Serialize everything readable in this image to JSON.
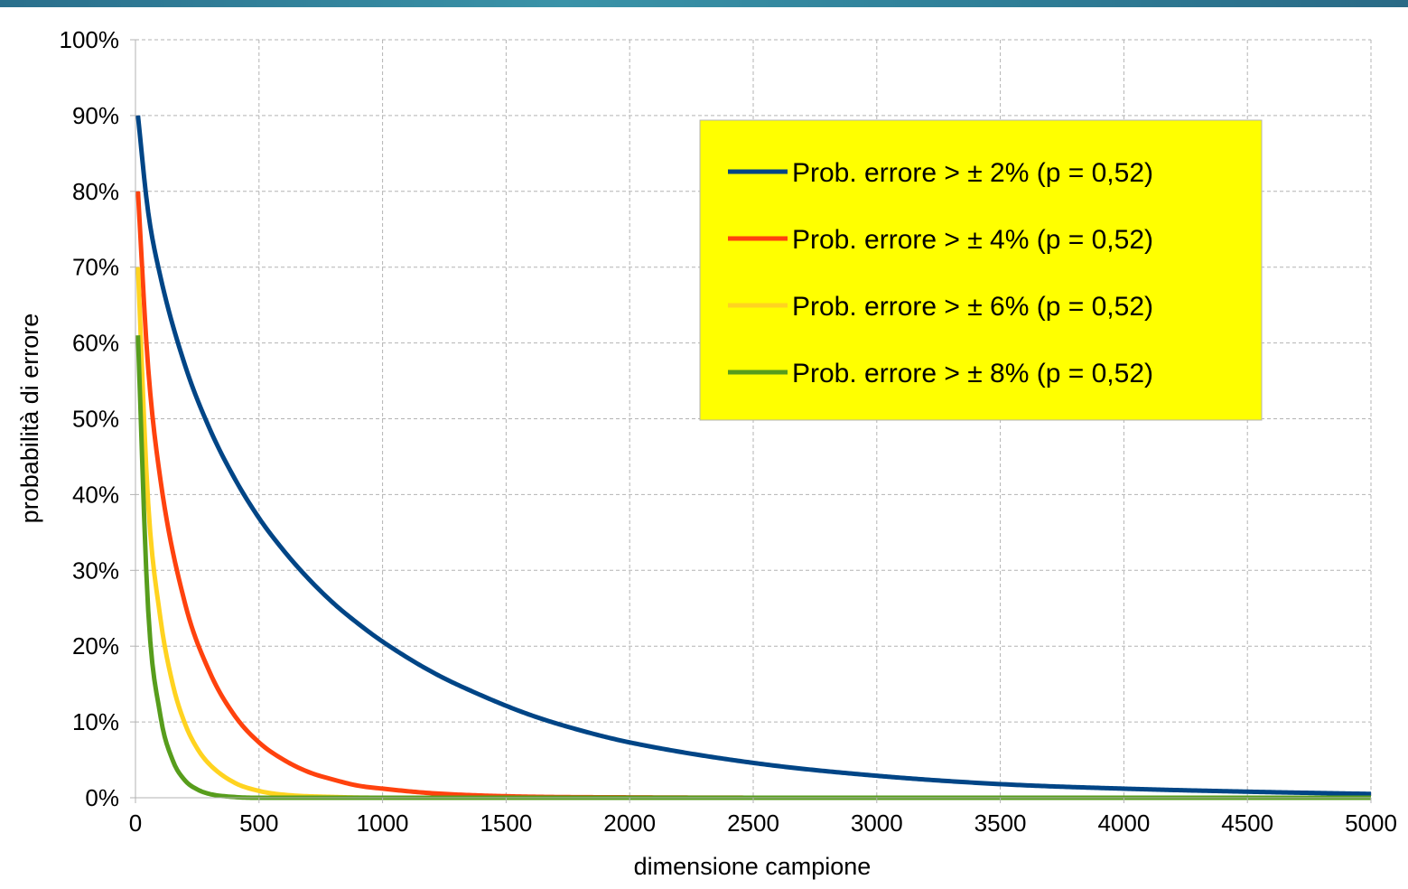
{
  "chart_data": {
    "type": "line",
    "xlabel": "dimensione campione",
    "ylabel": "probabilità di errore",
    "xlim": [
      0,
      5000
    ],
    "ylim": [
      0,
      100
    ],
    "x_ticks": [
      "0",
      "500",
      "1000",
      "1500",
      "2000",
      "2500",
      "3000",
      "3500",
      "4000",
      "4500",
      "5000"
    ],
    "y_ticks": [
      "0%",
      "10%",
      "20%",
      "30%",
      "40%",
      "50%",
      "60%",
      "70%",
      "80%",
      "90%",
      "100%"
    ],
    "grid": true,
    "legend_position": "top-right",
    "legend_background": "#ffff00",
    "series": [
      {
        "name": "Prob. errore > ± 2% (p = 0,52)",
        "color": "#004586",
        "points": [
          [
            10,
            90
          ],
          [
            50,
            77.6
          ],
          [
            100,
            68.9
          ],
          [
            200,
            57.1
          ],
          [
            300,
            48.7
          ],
          [
            400,
            42.2
          ],
          [
            500,
            36.9
          ],
          [
            600,
            32.6
          ],
          [
            700,
            28.9
          ],
          [
            800,
            25.7
          ],
          [
            900,
            23.0
          ],
          [
            1000,
            20.6
          ],
          [
            1200,
            16.6
          ],
          [
            1400,
            13.5
          ],
          [
            1600,
            10.9
          ],
          [
            1800,
            8.9
          ],
          [
            2000,
            7.3
          ],
          [
            2500,
            4.6
          ],
          [
            3000,
            2.9
          ],
          [
            3500,
            1.8
          ],
          [
            4000,
            1.2
          ],
          [
            4500,
            0.8
          ],
          [
            5000,
            0.5
          ]
        ]
      },
      {
        "name": "Prob. errore > ± 4% (p = 0,52)",
        "color": "#ff420e",
        "points": [
          [
            10,
            80
          ],
          [
            50,
            57.3
          ],
          [
            100,
            42.2
          ],
          [
            200,
            25.7
          ],
          [
            300,
            16.6
          ],
          [
            400,
            10.9
          ],
          [
            500,
            7.3
          ],
          [
            600,
            5.0
          ],
          [
            700,
            3.4
          ],
          [
            800,
            2.4
          ],
          [
            900,
            1.6
          ],
          [
            1000,
            1.2
          ],
          [
            1200,
            0.6
          ],
          [
            1500,
            0.2
          ],
          [
            2000,
            0.05
          ],
          [
            3000,
            0
          ],
          [
            5000,
            0
          ]
        ]
      },
      {
        "name": "Prob. errore > ± 6% (p = 0,52)",
        "color": "#ffd320",
        "points": [
          [
            10,
            70
          ],
          [
            50,
            39.6
          ],
          [
            100,
            23.9
          ],
          [
            150,
            15.1
          ],
          [
            200,
            9.8
          ],
          [
            250,
            6.5
          ],
          [
            300,
            4.4
          ],
          [
            400,
            2.0
          ],
          [
            500,
            0.9
          ],
          [
            600,
            0.4
          ],
          [
            800,
            0.1
          ],
          [
            1000,
            0
          ],
          [
            5000,
            0
          ]
        ]
      },
      {
        "name": "Prob. errore > ± 8% (p = 0,52)",
        "color": "#579d1c",
        "points": [
          [
            10,
            61
          ],
          [
            50,
            25.6
          ],
          [
            100,
            11.0
          ],
          [
            150,
            5.0
          ],
          [
            200,
            2.3
          ],
          [
            250,
            1.1
          ],
          [
            300,
            0.5
          ],
          [
            400,
            0.1
          ],
          [
            500,
            0
          ],
          [
            5000,
            0
          ]
        ]
      }
    ]
  }
}
